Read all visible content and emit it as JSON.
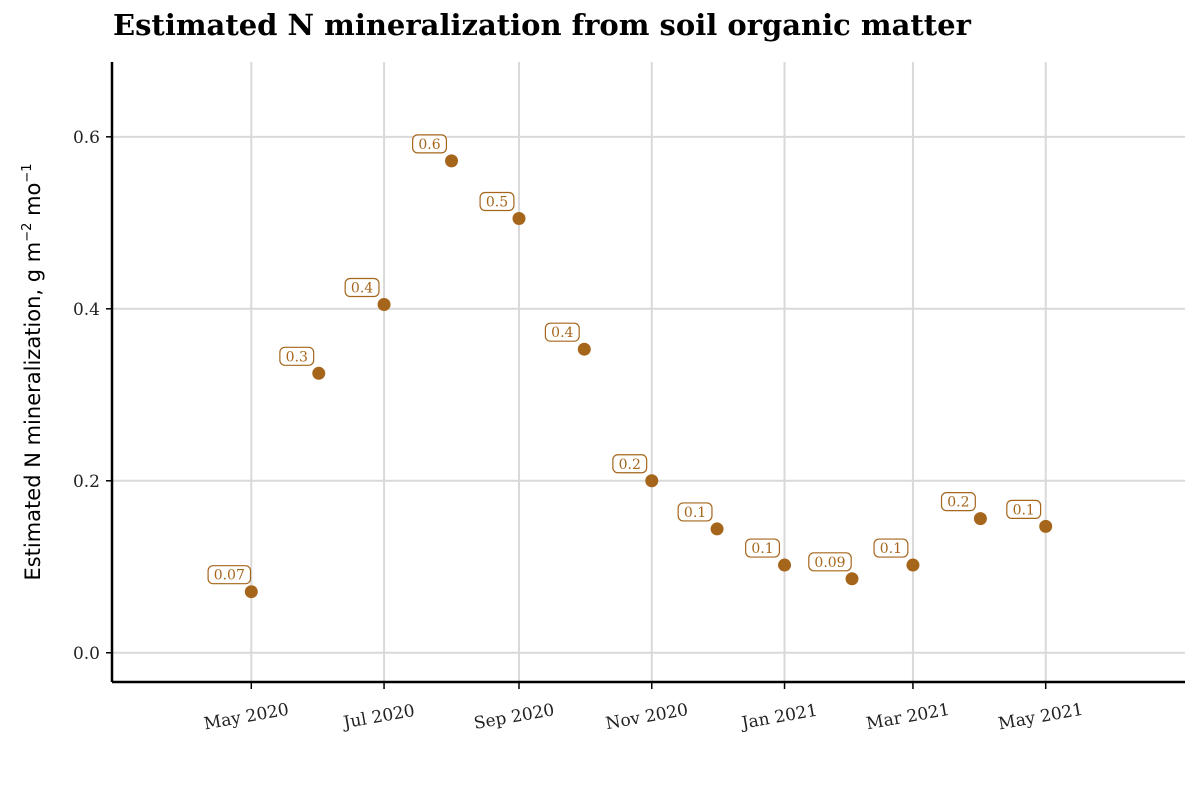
{
  "chart_data": {
    "type": "scatter",
    "title": "Estimated N mineralization from soil organic matter",
    "ylabel": {
      "text": "Estimated N mineralization, g m",
      "sup1": "−2",
      "mid": " mo",
      "sup2": "−1"
    },
    "xlabel": "",
    "x_ticks": [
      "2020-05-01",
      "2020-07-01",
      "2020-09-01",
      "2020-11-01",
      "2021-01-01",
      "2021-03-01",
      "2021-05-01"
    ],
    "x_tick_labels": [
      "May 2020",
      "Jul 2020",
      "Sep 2020",
      "Nov 2020",
      "Jan 2021",
      "Mar 2021",
      "May 2021"
    ],
    "xlim": [
      "2020-02-27",
      "2021-07-04"
    ],
    "y_ticks": [
      0.0,
      0.2,
      0.4,
      0.6
    ],
    "y_tick_labels": [
      "0.0",
      "0.2",
      "0.4",
      "0.6"
    ],
    "ylim": [
      -0.034,
      0.687
    ],
    "grid": true,
    "legend": "none",
    "point_color": "#a5661c",
    "points": [
      {
        "x": "2020-05-01",
        "y": 0.071,
        "label": "0.07"
      },
      {
        "x": "2020-06-01",
        "y": 0.325,
        "label": "0.3"
      },
      {
        "x": "2020-07-01",
        "y": 0.405,
        "label": "0.4"
      },
      {
        "x": "2020-08-01",
        "y": 0.572,
        "label": "0.6"
      },
      {
        "x": "2020-09-01",
        "y": 0.505,
        "label": "0.5"
      },
      {
        "x": "2020-10-01",
        "y": 0.353,
        "label": "0.4"
      },
      {
        "x": "2020-11-01",
        "y": 0.2,
        "label": "0.2"
      },
      {
        "x": "2020-12-01",
        "y": 0.144,
        "label": "0.1"
      },
      {
        "x": "2021-01-01",
        "y": 0.102,
        "label": "0.1"
      },
      {
        "x": "2021-02-01",
        "y": 0.086,
        "label": "0.09"
      },
      {
        "x": "2021-03-01",
        "y": 0.102,
        "label": "0.1"
      },
      {
        "x": "2021-04-01",
        "y": 0.156,
        "label": "0.2"
      },
      {
        "x": "2021-05-01",
        "y": 0.147,
        "label": "0.1"
      }
    ]
  }
}
